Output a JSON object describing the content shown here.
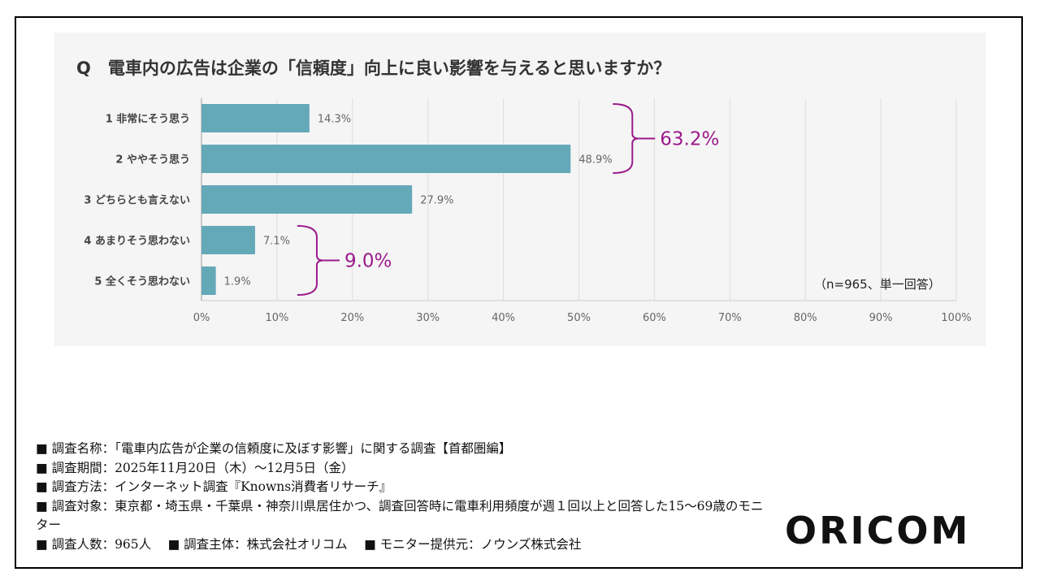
{
  "title": "Q　電車内の広告は企業の「信頼度」向上に良い影響を与えると思いますか？",
  "sample_note": "（n=965、単一回答）",
  "brackets": [
    {
      "label": "63.2%",
      "from": 0,
      "to": 1
    },
    {
      "label": "9.0%",
      "from": 3,
      "to": 4
    }
  ],
  "colors": {
    "bar": "#64a9b8",
    "bracket": "#9b1b8c",
    "grid": "#dddddd",
    "panel": "#f5f5f5"
  },
  "notes": [
    "■ 調査名称：「電車内広告が企業の信頼度に及ぼす影響」に関する調査【首都圏編】",
    "■ 調査期間：2025年11月20日（木）～12月5日（金）",
    "■ 調査方法：インターネット調査『Knowns消費者リサーチ』",
    "■ 調査対象：東京都・埼玉県・千葉県・神奈川県居住かつ、調査回答時に電車利用頻度が週１回以上と回答した15～69歳のモニター",
    "■ 調査人数：965人　 ■ 調査主体：株式会社オリコム　 ■ モニター提供元：ノウンズ株式会社"
  ],
  "logo": "ORICOM",
  "chart_data": {
    "type": "bar",
    "orientation": "horizontal",
    "categories": [
      "1 非常にそう思う",
      "2 ややそう思う",
      "3 どちらとも言えない",
      "4 あまりそう思わない",
      "5 全くそう思わない"
    ],
    "values": [
      14.3,
      48.9,
      27.9,
      7.1,
      1.9
    ],
    "value_labels": [
      "14.3%",
      "48.9%",
      "27.9%",
      "7.1%",
      "1.9%"
    ],
    "xlim": [
      0,
      100
    ],
    "xticks": [
      "0%",
      "10%",
      "20%",
      "30%",
      "40%",
      "50%",
      "60%",
      "70%",
      "80%",
      "90%",
      "100%"
    ],
    "grid": true
  }
}
